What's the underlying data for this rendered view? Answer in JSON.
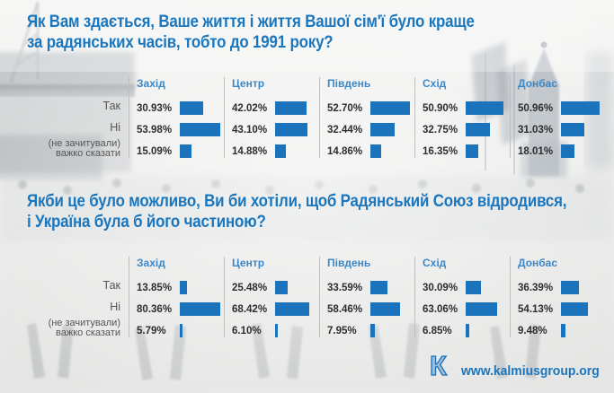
{
  "titles": {
    "q1_line1": "Як Вам здається, Ваше життя і життя Вашої сім'ї було краще",
    "q1_line2": "за радянських часів, тобто до 1991 року?",
    "q2_line1": "Якби це було можливо, Ви би хотіли, щоб Радянський Союз відродився,",
    "q2_line2": "і Україна була б його частиною?"
  },
  "footer": {
    "logo_letter": "К",
    "url": "www.kalmiusgroup.org"
  },
  "colors": {
    "bar": "#1b74bb",
    "header": "#3d87c6",
    "title": "#1a76bd",
    "separator": "#a9c3d8",
    "url": "#1c75bc",
    "value_text": "#2d2d2d",
    "category_text": "#555555"
  },
  "chart_data": [
    {
      "type": "bar",
      "title": "Як Вам здається, Ваше життя і життя Вашої сім'ї було краще за радянських часів, тобто до 1991 року?",
      "categories": [
        "Так",
        "Ні",
        "(не зачитували) важко сказати"
      ],
      "row_label_lines": [
        [
          "Так"
        ],
        [
          "Ні"
        ],
        [
          "(не зачитували)",
          "важко сказати"
        ]
      ],
      "series": [
        {
          "name": "Захід",
          "values": [
            30.93,
            53.98,
            15.09
          ]
        },
        {
          "name": "Центр",
          "values": [
            42.02,
            43.1,
            14.88
          ]
        },
        {
          "name": "Південь",
          "values": [
            52.7,
            32.44,
            14.86
          ]
        },
        {
          "name": "Схід",
          "values": [
            50.9,
            32.75,
            16.35
          ]
        },
        {
          "name": "Донбас",
          "values": [
            50.96,
            31.03,
            18.01
          ]
        }
      ],
      "unit": "%",
      "value_suffix": "%",
      "orientation": "horizontal",
      "grid": false,
      "legend_position": "none",
      "bars_normalized_to_chart_max": true
    },
    {
      "type": "bar",
      "title": "Якби це було можливо, Ви би хотіли, щоб Радянський Союз відродився, і Україна була б його частиною?",
      "categories": [
        "Так",
        "Ні",
        "(не зачитували) важко сказати"
      ],
      "row_label_lines": [
        [
          "Так"
        ],
        [
          "Ні"
        ],
        [
          "(не зачитували)",
          "важко сказати"
        ]
      ],
      "series": [
        {
          "name": "Захід",
          "values": [
            13.85,
            80.36,
            5.79
          ]
        },
        {
          "name": "Центр",
          "values": [
            25.48,
            68.42,
            6.1
          ]
        },
        {
          "name": "Південь",
          "values": [
            33.59,
            58.46,
            7.95
          ]
        },
        {
          "name": "Схід",
          "values": [
            30.09,
            63.06,
            6.85
          ]
        },
        {
          "name": "Донбас",
          "values": [
            36.39,
            54.13,
            9.48
          ]
        }
      ],
      "unit": "%",
      "value_suffix": "%",
      "orientation": "horizontal",
      "grid": false,
      "legend_position": "none",
      "bars_normalized_to_chart_max": true
    }
  ]
}
